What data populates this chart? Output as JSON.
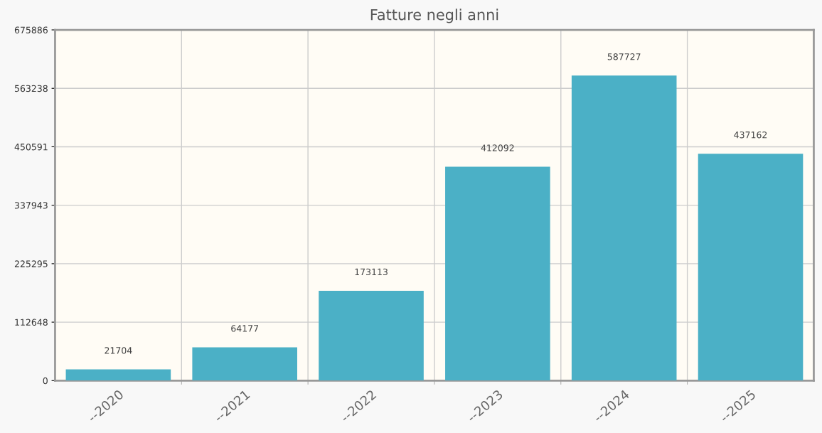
{
  "chart_data": {
    "type": "bar",
    "title": "Fatture negli anni",
    "categories": [
      "--2020",
      "--2021",
      "--2022",
      "--2023",
      "--2024",
      "--2025"
    ],
    "values": [
      21704,
      64177,
      173113,
      412092,
      587727,
      437162
    ],
    "color": "#4bb0c6",
    "ylim": [
      0,
      675886
    ],
    "yticks": [
      0,
      112648,
      225295,
      337943,
      450591,
      563238,
      675886
    ],
    "grid": true,
    "data_labels": true
  }
}
